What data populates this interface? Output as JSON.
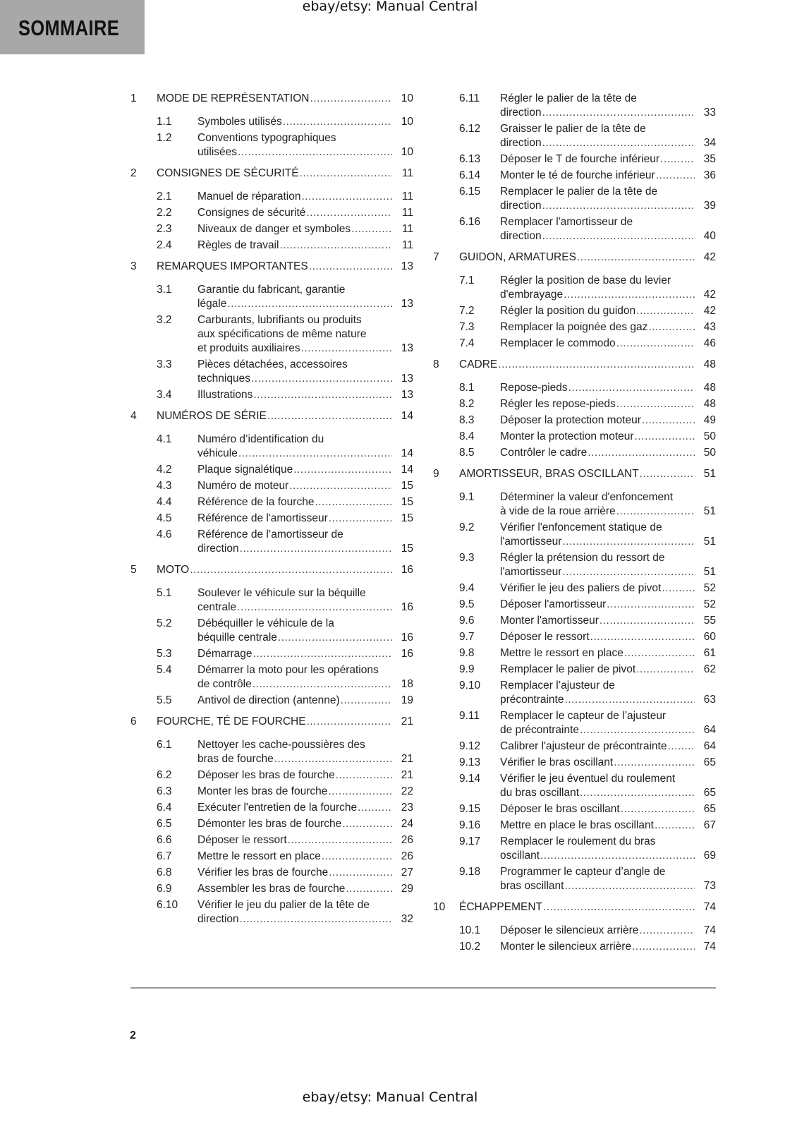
{
  "watermark": "ebay/etsy: Manual Central",
  "title": "SOMMAIRE",
  "page_number": "2",
  "toc_left": [
    {
      "ch": true,
      "n": "1",
      "t": [
        "MODE DE REPRÉSENTATION"
      ],
      "p": "10"
    },
    {
      "n": "1.1",
      "t": [
        "Symboles utilisés"
      ],
      "p": "10"
    },
    {
      "n": "1.2",
      "t": [
        "Conventions typographiques",
        "utilisées"
      ],
      "p": "10"
    },
    {
      "ch": true,
      "n": "2",
      "t": [
        "CONSIGNES DE SÉCURITÉ"
      ],
      "p": "11"
    },
    {
      "n": "2.1",
      "t": [
        "Manuel de réparation"
      ],
      "p": "11"
    },
    {
      "n": "2.2",
      "t": [
        "Consignes de sécurité"
      ],
      "p": "11"
    },
    {
      "n": "2.3",
      "t": [
        "Niveaux de danger et symboles"
      ],
      "p": "11"
    },
    {
      "n": "2.4",
      "t": [
        "Règles de travail"
      ],
      "p": "11"
    },
    {
      "ch": true,
      "n": "3",
      "t": [
        "REMARQUES IMPORTANTES"
      ],
      "p": "13"
    },
    {
      "n": "3.1",
      "t": [
        "Garantie du fabricant, garantie",
        "légale"
      ],
      "p": "13"
    },
    {
      "n": "3.2",
      "t": [
        "Carburants, lubrifiants ou produits",
        "aux spécifications de même nature",
        "et produits auxiliaires"
      ],
      "p": "13"
    },
    {
      "n": "3.3",
      "t": [
        "Pièces détachées, accessoires",
        "techniques"
      ],
      "p": "13"
    },
    {
      "n": "3.4",
      "t": [
        "Illustrations"
      ],
      "p": "13"
    },
    {
      "ch": true,
      "n": "4",
      "t": [
        "NUMÉROS DE SÉRIE"
      ],
      "p": "14"
    },
    {
      "n": "4.1",
      "t": [
        "Numéro d’identification du",
        "véhicule"
      ],
      "p": "14"
    },
    {
      "n": "4.2",
      "t": [
        "Plaque signalétique"
      ],
      "p": "14"
    },
    {
      "n": "4.3",
      "t": [
        "Numéro de moteur"
      ],
      "p": "15"
    },
    {
      "n": "4.4",
      "t": [
        "Référence de la fourche"
      ],
      "p": "15"
    },
    {
      "n": "4.5",
      "t": [
        "Référence de l'amortisseur"
      ],
      "p": "15"
    },
    {
      "n": "4.6",
      "t": [
        "Référence de l’amortisseur de",
        "direction"
      ],
      "p": "15"
    },
    {
      "ch": true,
      "n": "5",
      "t": [
        "MOTO"
      ],
      "p": "16"
    },
    {
      "n": "5.1",
      "t": [
        "Soulever le véhicule sur la béquille",
        "centrale"
      ],
      "p": "16"
    },
    {
      "n": "5.2",
      "t": [
        "Débéquiller le véhicule de la",
        "béquille centrale"
      ],
      "p": "16"
    },
    {
      "n": "5.3",
      "t": [
        "Démarrage"
      ],
      "p": "16"
    },
    {
      "n": "5.4",
      "t": [
        "Démarrer la moto pour les opérations",
        "de contrôle"
      ],
      "p": "18"
    },
    {
      "n": "5.5",
      "t": [
        "Antivol de direction (antenne)"
      ],
      "p": "19"
    },
    {
      "ch": true,
      "n": "6",
      "t": [
        "FOURCHE, TÉ DE FOURCHE"
      ],
      "p": "21"
    },
    {
      "n": "6.1",
      "t": [
        "Nettoyer les cache-poussières des",
        "bras de fourche"
      ],
      "p": "21"
    },
    {
      "n": "6.2",
      "t": [
        "Déposer les bras de fourche"
      ],
      "p": "21"
    },
    {
      "n": "6.3",
      "t": [
        "Monter les bras de fourche"
      ],
      "p": "22"
    },
    {
      "n": "6.4",
      "t": [
        "Exécuter l'entretien de la fourche"
      ],
      "p": "23"
    },
    {
      "n": "6.5",
      "t": [
        "Démonter les bras de fourche"
      ],
      "p": "24"
    },
    {
      "n": "6.6",
      "t": [
        "Déposer le ressort"
      ],
      "p": "26"
    },
    {
      "n": "6.7",
      "t": [
        "Mettre le ressort en place"
      ],
      "p": "26"
    },
    {
      "n": "6.8",
      "t": [
        "Vérifier les bras de fourche"
      ],
      "p": "27"
    },
    {
      "n": "6.9",
      "t": [
        "Assembler les bras de fourche"
      ],
      "p": "29"
    },
    {
      "n": "6.10",
      "t": [
        "Vérifier le jeu du palier de la tête de",
        "direction"
      ],
      "p": "32"
    }
  ],
  "toc_right": [
    {
      "n": "6.11",
      "t": [
        "Régler le palier de la tête de",
        "direction"
      ],
      "p": "33"
    },
    {
      "n": "6.12",
      "t": [
        "Graisser le palier de la tête de",
        "direction"
      ],
      "p": "34"
    },
    {
      "n": "6.13",
      "t": [
        "Déposer le T de fourche inférieur"
      ],
      "p": "35"
    },
    {
      "n": "6.14",
      "t": [
        "Monter le té de fourche inférieur"
      ],
      "p": "36"
    },
    {
      "n": "6.15",
      "t": [
        "Remplacer le palier de la tête de",
        "direction"
      ],
      "p": "39"
    },
    {
      "n": "6.16",
      "t": [
        "Remplacer l'amortisseur de",
        "direction"
      ],
      "p": "40"
    },
    {
      "ch": true,
      "n": "7",
      "t": [
        "GUIDON, ARMATURES"
      ],
      "p": "42"
    },
    {
      "n": "7.1",
      "t": [
        "Régler la position de base du levier",
        "d'embrayage"
      ],
      "p": "42"
    },
    {
      "n": "7.2",
      "t": [
        "Régler la position du guidon"
      ],
      "p": "42"
    },
    {
      "n": "7.3",
      "t": [
        "Remplacer la poignée des gaz"
      ],
      "p": "43"
    },
    {
      "n": "7.4",
      "t": [
        "Remplacer le commodo"
      ],
      "p": "46"
    },
    {
      "ch": true,
      "n": "8",
      "t": [
        "CADRE"
      ],
      "p": "48"
    },
    {
      "n": "8.1",
      "t": [
        "Repose-pieds"
      ],
      "p": "48"
    },
    {
      "n": "8.2",
      "t": [
        "Régler les repose-pieds"
      ],
      "p": "48"
    },
    {
      "n": "8.3",
      "t": [
        "Déposer la protection moteur"
      ],
      "p": "49"
    },
    {
      "n": "8.4",
      "t": [
        "Monter la protection moteur"
      ],
      "p": "50"
    },
    {
      "n": "8.5",
      "t": [
        "Contrôler le cadre"
      ],
      "p": "50"
    },
    {
      "ch": true,
      "n": "9",
      "t": [
        "AMORTISSEUR, BRAS OSCILLANT"
      ],
      "p": "51"
    },
    {
      "n": "9.1",
      "t": [
        "Déterminer la valeur d'enfoncement",
        "à vide de la roue arrière"
      ],
      "p": "51"
    },
    {
      "n": "9.2",
      "t": [
        "Vérifier l'enfoncement statique de",
        "l'amortisseur"
      ],
      "p": "51"
    },
    {
      "n": "9.3",
      "t": [
        "Régler la prétension du ressort de",
        "l'amortisseur"
      ],
      "p": "51"
    },
    {
      "n": "9.4",
      "t": [
        "Vérifier le jeu des paliers de pivot"
      ],
      "p": "52"
    },
    {
      "n": "9.5",
      "t": [
        "Déposer l'amortisseur"
      ],
      "p": "52"
    },
    {
      "n": "9.6",
      "t": [
        "Monter l'amortisseur"
      ],
      "p": "55"
    },
    {
      "n": "9.7",
      "t": [
        "Déposer le ressort"
      ],
      "p": "60"
    },
    {
      "n": "9.8",
      "t": [
        "Mettre le ressort en place"
      ],
      "p": "61"
    },
    {
      "n": "9.9",
      "t": [
        "Remplacer le palier de pivot"
      ],
      "p": "62"
    },
    {
      "n": "9.10",
      "t": [
        "Remplacer l’ajusteur de",
        "précontrainte"
      ],
      "p": "63"
    },
    {
      "n": "9.11",
      "t": [
        "Remplacer le capteur de l’ajusteur",
        "de précontrainte"
      ],
      "p": "64"
    },
    {
      "n": "9.12",
      "t": [
        "Calibrer l'ajusteur de précontrainte"
      ],
      "p": "64"
    },
    {
      "n": "9.13",
      "t": [
        "Vérifier le bras oscillant"
      ],
      "p": "65"
    },
    {
      "n": "9.14",
      "t": [
        "Vérifier le jeu éventuel du roulement",
        "du bras oscillant"
      ],
      "p": "65"
    },
    {
      "n": "9.15",
      "t": [
        "Déposer le bras oscillant"
      ],
      "p": "65"
    },
    {
      "n": "9.16",
      "t": [
        "Mettre en place le bras oscillant"
      ],
      "p": "67"
    },
    {
      "n": "9.17",
      "t": [
        "Remplacer le roulement du bras",
        "oscillant"
      ],
      "p": "69"
    },
    {
      "n": "9.18",
      "t": [
        "Programmer le capteur d’angle de",
        "bras oscillant"
      ],
      "p": "73"
    },
    {
      "ch": true,
      "n": "10",
      "t": [
        "ÉCHAPPEMENT"
      ],
      "p": "74"
    },
    {
      "n": "10.1",
      "t": [
        "Déposer le silencieux arrière"
      ],
      "p": "74"
    },
    {
      "n": "10.2",
      "t": [
        "Monter le silencieux arrière"
      ],
      "p": "74"
    }
  ]
}
